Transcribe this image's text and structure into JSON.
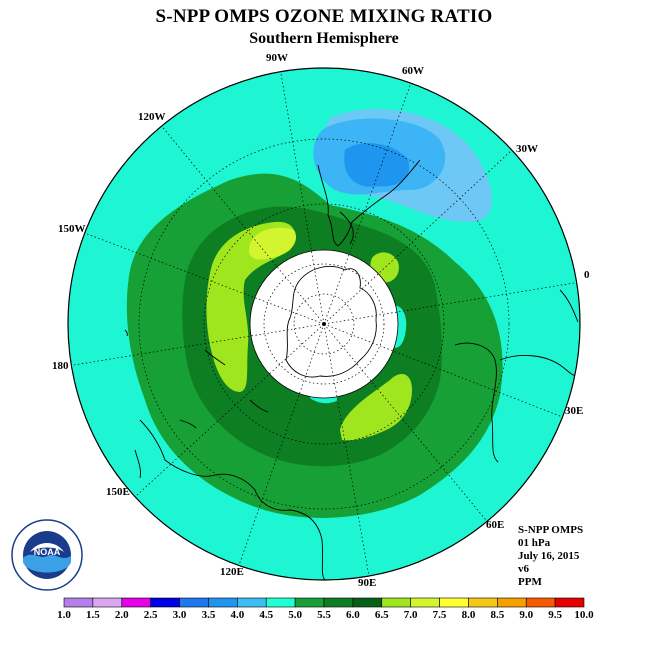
{
  "title": "S-NPP OMPS OZONE MIXING RATIO",
  "subtitle": "Southern Hemisphere",
  "longitude_labels": [
    "90W",
    "60W",
    "30W",
    "0",
    "30E",
    "60E",
    "90E",
    "120E",
    "150E",
    "180",
    "150W",
    "120W"
  ],
  "info": {
    "instrument": "S-NPP OMPS",
    "pressure": "01 hPa",
    "date": "July 16, 2015",
    "version": "v6",
    "units": "PPM"
  },
  "logo": {
    "text": "NOAA",
    "icon": "noaa-logo-icon"
  },
  "colorbar": {
    "labels": [
      "1.0",
      "1.5",
      "2.0",
      "2.5",
      "3.0",
      "3.5",
      "4.0",
      "4.5",
      "5.0",
      "5.5",
      "6.0",
      "6.5",
      "7.0",
      "7.5",
      "8.0",
      "8.5",
      "9.0",
      "9.5",
      "10.0"
    ],
    "colors": [
      "#b57ee8",
      "#d9a6f0",
      "#e600e6",
      "#0000e6",
      "#1e78f0",
      "#1e96f0",
      "#3cbef5",
      "#1effd2",
      "#16a035",
      "#0e7e22",
      "#066015",
      "#a0e61e",
      "#d2f530",
      "#ffff32",
      "#f5c818",
      "#f5a000",
      "#f55a00",
      "#e60000",
      "#7a5a3c"
    ]
  },
  "colors": {
    "background_field": "#1ef5d2",
    "band_5_5": "#16a035",
    "band_6_0": "#0e7e22",
    "band_6_5": "#a0e61e",
    "band_7_0": "#d2f530",
    "band_4_0": "#6ec8f5",
    "band_3_5": "#3cb4f5",
    "band_3_0": "#1e96f0"
  }
}
